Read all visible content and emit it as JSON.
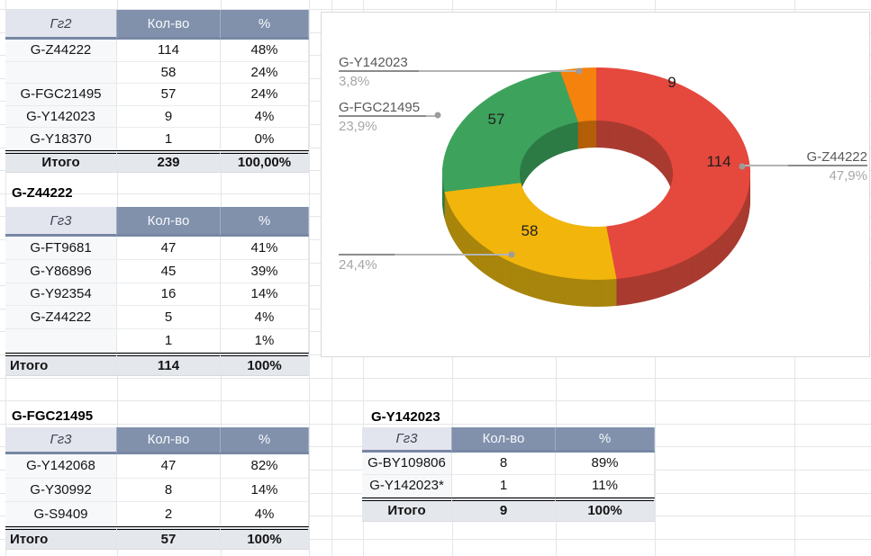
{
  "sheet": {
    "tables": [
      {
        "id": "t1",
        "title": "",
        "headers": [
          "Гг2",
          "Кол-во",
          "%"
        ],
        "rows": [
          [
            "G-Z44222",
            "114",
            "48%"
          ],
          [
            "",
            "58",
            "24%"
          ],
          [
            "G-FGC21495",
            "57",
            "24%"
          ],
          [
            "G-Y142023",
            "9",
            "4%"
          ],
          [
            "G-Y18370",
            "1",
            "0%"
          ]
        ],
        "total": [
          "Итого",
          "239",
          "100,00%"
        ],
        "total_align": "center"
      },
      {
        "id": "t2",
        "title": "G-Z44222",
        "headers": [
          "Гг3",
          "Кол-во",
          "%"
        ],
        "rows": [
          [
            "G-FT9681",
            "47",
            "41%"
          ],
          [
            "G-Y86896",
            "45",
            "39%"
          ],
          [
            "G-Y92354",
            "16",
            "14%"
          ],
          [
            "G-Z44222",
            "5",
            "4%"
          ],
          [
            "",
            "1",
            "1%"
          ]
        ],
        "total": [
          "Итого",
          "114",
          "100%"
        ],
        "total_align": "left"
      },
      {
        "id": "t3",
        "title": "G-FGC21495",
        "headers": [
          "Гг3",
          "Кол-во",
          "%"
        ],
        "rows": [
          [
            "G-Y142068",
            "47",
            "82%"
          ],
          [
            "G-Y30992",
            "8",
            "14%"
          ],
          [
            "G-S9409",
            "2",
            "4%"
          ]
        ],
        "total": [
          "Итого",
          "57",
          "100%"
        ],
        "total_align": "left"
      },
      {
        "id": "t4",
        "title": "G-Y142023",
        "headers": [
          "Гг3",
          "Кол-во",
          "%"
        ],
        "rows": [
          [
            "G-BY109806",
            "8",
            "89%"
          ],
          [
            "G-Y142023*",
            "1",
            "11%"
          ]
        ],
        "total": [
          "Итого",
          "9",
          "100%"
        ],
        "total_align": "center"
      }
    ]
  },
  "chart_data": {
    "type": "pie",
    "subtype": "3d-donut",
    "title": "",
    "legend_position": "none",
    "labels_outside": true,
    "categories": [
      "G-Z44222",
      "",
      "G-FGC21495",
      "G-Y142023"
    ],
    "values": [
      114,
      58,
      57,
      9
    ],
    "value_labels": [
      "114",
      "58",
      "57",
      "9"
    ],
    "percent_labels": [
      "47,9%",
      "24,4%",
      "23,9%",
      "3,8%"
    ],
    "colors": [
      "#e5483d",
      "#f2b50c",
      "#3da35c",
      "#f5820d"
    ],
    "colors_dark": [
      "#a93b30",
      "#a8850c",
      "#2d7b45",
      "#b25f08"
    ]
  }
}
